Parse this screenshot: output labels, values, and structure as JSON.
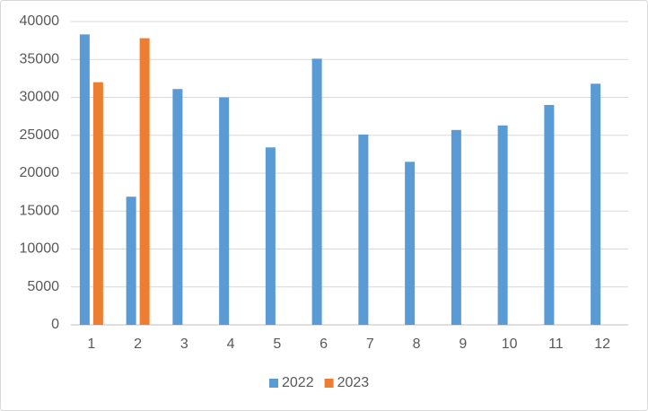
{
  "chart_data": {
    "type": "bar",
    "categories": [
      "1",
      "2",
      "3",
      "4",
      "5",
      "6",
      "7",
      "8",
      "9",
      "10",
      "11",
      "12"
    ],
    "series": [
      {
        "name": "2022",
        "color": "#5b9bd5",
        "values": [
          38300,
          16900,
          31100,
          30000,
          23400,
          35100,
          25100,
          21500,
          25700,
          26300,
          29000,
          31800
        ]
      },
      {
        "name": "2023",
        "color": "#ed7d31",
        "values": [
          32000,
          37800,
          null,
          null,
          null,
          null,
          null,
          null,
          null,
          null,
          null,
          null
        ]
      }
    ],
    "ylim": [
      0,
      40000
    ],
    "yticks": [
      0,
      5000,
      10000,
      15000,
      20000,
      25000,
      30000,
      35000,
      40000
    ],
    "grid": true,
    "legend": "bottom"
  }
}
